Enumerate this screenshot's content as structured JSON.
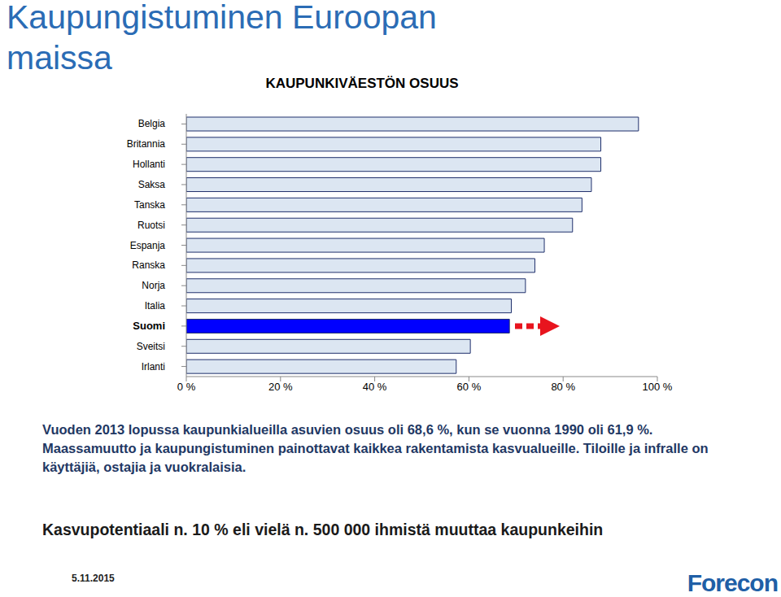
{
  "chart_data": {
    "type": "bar",
    "title": "Kaupungistuminen Euroopan maissa",
    "subtitle": "KAUPUNKIVÄESTÖN OSUUS",
    "orientation": "horizontal",
    "categories": [
      "Belgia",
      "Britannia",
      "Hollanti",
      "Saksa",
      "Tanska",
      "Ruotsi",
      "Espanja",
      "Ranska",
      "Norja",
      "Italia",
      "Suomi",
      "Sveitsi",
      "Irlanti"
    ],
    "values": [
      96,
      88,
      88,
      86,
      84,
      82,
      76,
      74,
      72,
      69,
      68.6,
      60.3,
      57.3
    ],
    "colors": [
      "#dce6f2",
      "#dce6f2",
      "#dce6f2",
      "#dce6f2",
      "#dce6f2",
      "#dce6f2",
      "#dce6f2",
      "#dce6f2",
      "#dce6f2",
      "#dce6f2",
      "#0000ff",
      "#dce6f2",
      "#dce6f2"
    ],
    "xlim": [
      0,
      100
    ],
    "xticks": [
      {
        "value": 0,
        "label": "0 %"
      },
      {
        "value": 20,
        "label": "20 %"
      },
      {
        "value": 40,
        "label": "40 %"
      },
      {
        "value": 60,
        "label": "60 %"
      },
      {
        "value": 80,
        "label": "80 %"
      },
      {
        "value": 100,
        "label": "100 %"
      }
    ],
    "grid": false,
    "annotations": [
      "Vuoden 2013 lopussa kaupunkialueilla asuvien osuus oli 68,6 %, kun se vuonna 1990 oli 61,9 %.",
      "Maassamuutto ja kaupungistuminen painottavat kaikkea rakentamista kasvualueille. Tiloille ja infralle on käyttäjiä, ostajia ja vuokralaisia.",
      "Kasvupotentiaali n. 10 % eli vielä n. 500 000 ihmistä muuttaa kaupunkeihin"
    ],
    "date": "5.11.2015",
    "source": "Forecon"
  }
}
